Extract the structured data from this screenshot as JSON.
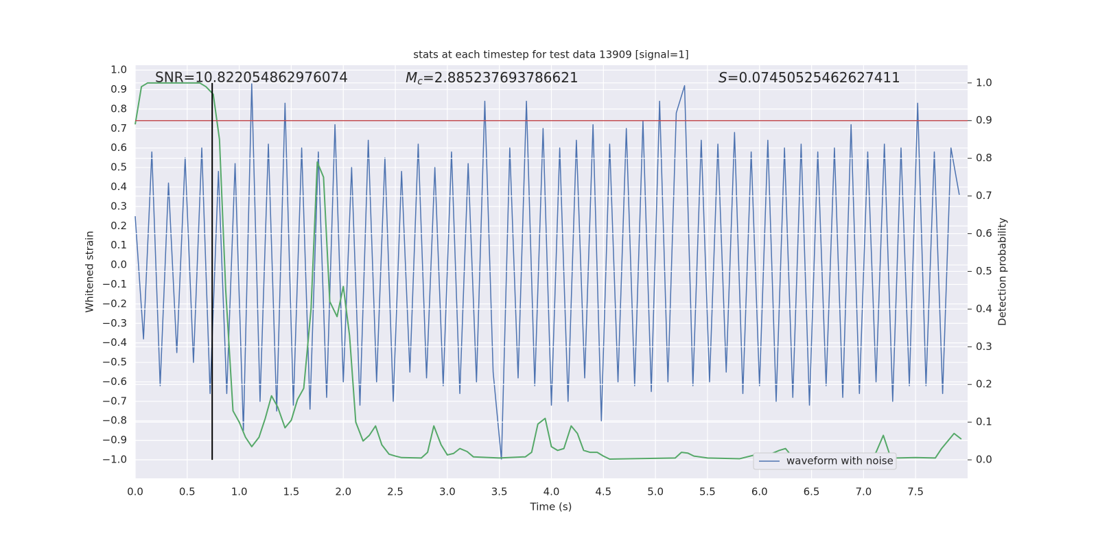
{
  "chart_data": {
    "type": "line",
    "title": "stats at each timestep for test data 13909 [signal=1]",
    "xlabel": "Time (s)",
    "ylabel": "Whitened strain",
    "y2label": "Detection probability",
    "xlim": [
      0,
      8
    ],
    "ylim": [
      -1.095,
      1.025
    ],
    "y2lim": [
      -0.049,
      1.047
    ],
    "grid": true,
    "legend": "lower right",
    "xticks": [
      {
        "value": 0,
        "label": "0.0"
      },
      {
        "value": 0.5,
        "label": "0.5"
      },
      {
        "value": 1,
        "label": "1.0"
      },
      {
        "value": 1.5,
        "label": "1.5"
      },
      {
        "value": 2,
        "label": "2.0"
      },
      {
        "value": 2.5,
        "label": "2.5"
      },
      {
        "value": 3,
        "label": "3.0"
      },
      {
        "value": 3.5,
        "label": "3.5"
      },
      {
        "value": 4,
        "label": "4.0"
      },
      {
        "value": 4.5,
        "label": "4.5"
      },
      {
        "value": 5,
        "label": "5.0"
      },
      {
        "value": 5.5,
        "label": "5.5"
      },
      {
        "value": 6,
        "label": "6.0"
      },
      {
        "value": 6.5,
        "label": "6.5"
      },
      {
        "value": 7,
        "label": "7.0"
      },
      {
        "value": 7.5,
        "label": "7.5"
      }
    ],
    "yticks": [
      {
        "value": -1,
        "label": "−1.0"
      },
      {
        "value": -0.9,
        "label": "−0.9"
      },
      {
        "value": -0.8,
        "label": "−0.8"
      },
      {
        "value": -0.7,
        "label": "−0.7"
      },
      {
        "value": -0.6,
        "label": "−0.6"
      },
      {
        "value": -0.5,
        "label": "−0.5"
      },
      {
        "value": -0.4,
        "label": "−0.4"
      },
      {
        "value": -0.3,
        "label": "−0.3"
      },
      {
        "value": -0.2,
        "label": "−0.2"
      },
      {
        "value": -0.1,
        "label": "−0.1"
      },
      {
        "value": 0,
        "label": "0.0"
      },
      {
        "value": 0.1,
        "label": "0.1"
      },
      {
        "value": 0.2,
        "label": "0.2"
      },
      {
        "value": 0.3,
        "label": "0.3"
      },
      {
        "value": 0.4,
        "label": "0.4"
      },
      {
        "value": 0.5,
        "label": "0.5"
      },
      {
        "value": 0.6,
        "label": "0.6"
      },
      {
        "value": 0.7,
        "label": "0.7"
      },
      {
        "value": 0.8,
        "label": "0.8"
      },
      {
        "value": 0.9,
        "label": "0.9"
      },
      {
        "value": 1,
        "label": "1.0"
      }
    ],
    "y2ticks": [
      {
        "value": 0,
        "label": "0.0"
      },
      {
        "value": 0.1,
        "label": "0.1"
      },
      {
        "value": 0.2,
        "label": "0.2"
      },
      {
        "value": 0.3,
        "label": "0.3"
      },
      {
        "value": 0.4,
        "label": "0.4"
      },
      {
        "value": 0.5,
        "label": "0.5"
      },
      {
        "value": 0.6,
        "label": "0.6"
      },
      {
        "value": 0.7,
        "label": "0.7"
      },
      {
        "value": 0.8,
        "label": "0.8"
      },
      {
        "value": 0.9,
        "label": "0.9"
      },
      {
        "value": 1,
        "label": "1.0"
      }
    ],
    "series": [
      {
        "name": "waveform with noise",
        "color": "#4c72b0",
        "axis": "y",
        "x": [
          0,
          0.08,
          0.16,
          0.24,
          0.32,
          0.4,
          0.48,
          0.56,
          0.64,
          0.72,
          0.8,
          0.88,
          0.96,
          1.04,
          1.12,
          1.2,
          1.28,
          1.36,
          1.44,
          1.52,
          1.6,
          1.68,
          1.76,
          1.84,
          1.92,
          2,
          2.08,
          2.16,
          2.24,
          2.32,
          2.4,
          2.48,
          2.56,
          2.64,
          2.72,
          2.8,
          2.88,
          2.96,
          3.04,
          3.12,
          3.2,
          3.28,
          3.36,
          3.44,
          3.52,
          3.6,
          3.68,
          3.76,
          3.84,
          3.92,
          4,
          4.08,
          4.16,
          4.24,
          4.32,
          4.4,
          4.48,
          4.56,
          4.64,
          4.72,
          4.8,
          4.88,
          4.96,
          5.04,
          5.12,
          5.2,
          5.28,
          5.36,
          5.44,
          5.52,
          5.6,
          5.68,
          5.76,
          5.84,
          5.92,
          6,
          6.08,
          6.16,
          6.24,
          6.32,
          6.4,
          6.48,
          6.56,
          6.64,
          6.72,
          6.8,
          6.88,
          6.96,
          7.04,
          7.12,
          7.2,
          7.28,
          7.36,
          7.44,
          7.52,
          7.6,
          7.68,
          7.76,
          7.84,
          7.92
        ],
        "values": [
          0.25,
          -0.38,
          0.58,
          -0.62,
          0.42,
          -0.45,
          0.55,
          -0.5,
          0.6,
          -0.66,
          0.48,
          -0.66,
          0.52,
          -0.85,
          0.93,
          -0.7,
          0.62,
          -0.75,
          0.83,
          -0.72,
          0.6,
          -0.74,
          0.58,
          -0.68,
          0.72,
          -0.6,
          0.5,
          -0.72,
          0.64,
          -0.6,
          0.55,
          -0.7,
          0.48,
          -0.55,
          0.62,
          -0.58,
          0.5,
          -0.62,
          0.58,
          -0.66,
          0.52,
          -0.6,
          0.84,
          -0.55,
          -1.0,
          0.6,
          -0.58,
          0.84,
          -0.62,
          0.7,
          -0.72,
          0.6,
          -0.7,
          0.64,
          -0.58,
          0.72,
          -0.8,
          0.62,
          -0.6,
          0.7,
          -0.62,
          0.74,
          -0.65,
          0.84,
          -0.6,
          0.78,
          0.92,
          -0.62,
          0.64,
          -0.6,
          0.62,
          -0.55,
          0.68,
          -0.66,
          0.58,
          -0.62,
          0.64,
          -0.7,
          0.6,
          -0.68,
          0.62,
          -0.72,
          0.58,
          -0.62,
          0.6,
          -0.68,
          0.72,
          -0.66,
          0.58,
          -0.6,
          0.62,
          -0.7,
          0.6,
          -0.62,
          0.83,
          -0.62,
          0.58,
          -0.66,
          0.6,
          0.36
        ]
      },
      {
        "name": null,
        "color": "#55a868",
        "axis": "y2",
        "x": [
          0,
          0.06,
          0.12,
          0.25,
          0.37,
          0.5,
          0.62,
          0.68,
          0.75,
          0.81,
          0.87,
          0.94,
          1,
          1.06,
          1.12,
          1.19,
          1.25,
          1.31,
          1.37,
          1.44,
          1.5,
          1.56,
          1.62,
          1.69,
          1.75,
          1.81,
          1.87,
          1.94,
          2,
          2.06,
          2.12,
          2.19,
          2.25,
          2.31,
          2.37,
          2.44,
          2.5,
          2.56,
          2.75,
          2.81,
          2.87,
          2.94,
          3,
          3.06,
          3.12,
          3.19,
          3.25,
          3.5,
          3.75,
          3.81,
          3.87,
          3.94,
          4,
          4.06,
          4.12,
          4.19,
          4.25,
          4.31,
          4.37,
          4.44,
          4.5,
          4.56,
          5.19,
          5.25,
          5.31,
          5.37,
          5.5,
          5.81,
          5.94,
          6.06,
          6.19,
          6.25,
          6.31,
          6.44,
          6.56,
          7.06,
          7.12,
          7.19,
          7.25,
          7.31,
          7.5,
          7.69,
          7.75,
          7.87,
          7.94
        ],
        "values": [
          0.89,
          0.99,
          1.0,
          1.0,
          1.0,
          1.0,
          1.0,
          0.99,
          0.97,
          0.85,
          0.45,
          0.13,
          0.1,
          0.06,
          0.035,
          0.06,
          0.11,
          0.17,
          0.14,
          0.085,
          0.105,
          0.16,
          0.19,
          0.4,
          0.79,
          0.75,
          0.42,
          0.38,
          0.46,
          0.33,
          0.1,
          0.05,
          0.065,
          0.09,
          0.04,
          0.015,
          0.01,
          0.006,
          0.005,
          0.02,
          0.09,
          0.04,
          0.013,
          0.017,
          0.03,
          0.022,
          0.008,
          0.005,
          0.008,
          0.02,
          0.095,
          0.11,
          0.035,
          0.025,
          0.03,
          0.09,
          0.07,
          0.025,
          0.02,
          0.02,
          0.01,
          0.002,
          0.005,
          0.02,
          0.018,
          0.01,
          0.005,
          0.003,
          0.012,
          0.01,
          0.025,
          0.03,
          0.01,
          0.008,
          0.003,
          0.005,
          0.02,
          0.065,
          0.015,
          0.005,
          0.006,
          0.005,
          0.03,
          0.07,
          0.055
        ]
      }
    ],
    "hline": {
      "value": 0.9,
      "axis": "y2",
      "color": "#c44e52"
    },
    "vline": {
      "x": 0.74,
      "ymin": 0,
      "ymax": 1,
      "axis": "y2",
      "color": "#000000"
    },
    "annotations": {
      "snr": "SNR=10.822054862976074",
      "mc_symbol": "M",
      "mc_subscript": "c",
      "mc_text": "=2.885237693786621",
      "s_symbol": "S",
      "s_text": "=0.07450525462627411"
    }
  }
}
